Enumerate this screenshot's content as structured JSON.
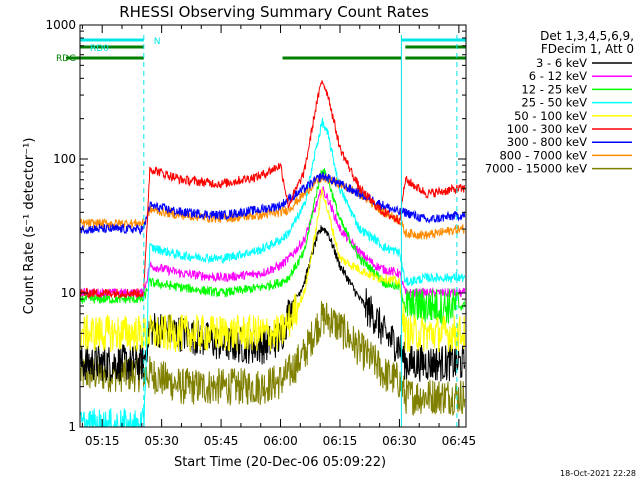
{
  "chart_data": {
    "type": "line",
    "title": "RHESSI Observing Summary Count Rates",
    "xlabel": "Start Time (20-Dec-06 05:09:22)",
    "ylabel": "Count Rate (s⁻¹ detector⁻¹)",
    "y_scale": "log",
    "ylim": [
      1,
      1000
    ],
    "xlim_minutes_since_0500": [
      9.4,
      47.0
    ],
    "x_ticks": [
      {
        "label": "05:15",
        "value": 15
      },
      {
        "label": "05:30",
        "value": 30
      },
      {
        "label": "05:45",
        "value": 45
      },
      {
        "label": "06:00",
        "value": 60
      },
      {
        "label": "06:15",
        "value": 75
      },
      {
        "label": "06:30",
        "value": 90
      },
      {
        "label": "06:45",
        "value": 105
      }
    ],
    "y_ticks": [
      {
        "label": "1",
        "value": 1
      },
      {
        "label": "10",
        "value": 10
      },
      {
        "label": "100",
        "value": 100
      },
      {
        "label": "1000",
        "value": 1000
      }
    ],
    "legend": {
      "placement": "top-right",
      "header": [
        "Det 1,3,4,5,6,9,",
        "FDecim 1, Att 0"
      ]
    },
    "footer_timestamp": "18-Oct-2021 22:28",
    "flags": [
      {
        "label": "N",
        "color": "#00e6e6"
      },
      {
        "label": "RD0",
        "color": "#00e6e6"
      },
      {
        "label": "RDG",
        "color": "#007f00"
      }
    ],
    "series": [
      {
        "name": "3 - 6 keV",
        "color": "#000000",
        "x": [
          9.6,
          14,
          18,
          25.5,
          27,
          35,
          45,
          55,
          60,
          62,
          66,
          69,
          70.5,
          72,
          75,
          80,
          84,
          86,
          90,
          91.5,
          97,
          105
        ],
        "y": [
          3,
          3,
          3,
          3,
          5.5,
          5,
          4.2,
          4,
          4.6,
          7,
          12,
          25,
          31,
          28,
          16,
          9,
          6.5,
          5,
          4,
          3,
          3,
          3
        ]
      },
      {
        "name": "6 - 12 keV",
        "color": "#ff00ff",
        "x": [
          9.6,
          25.5,
          27,
          35,
          45,
          55,
          60,
          62,
          66,
          69,
          70.5,
          72,
          75,
          80,
          84,
          86,
          90,
          91.5,
          105
        ],
        "y": [
          10,
          10,
          16,
          14,
          13,
          14,
          16,
          18,
          25,
          45,
          60,
          50,
          30,
          20,
          16,
          15,
          14,
          10,
          10
        ]
      },
      {
        "name": "12 - 25 keV",
        "color": "#00ff00",
        "x": [
          9.6,
          25.5,
          27,
          35,
          45,
          55,
          60,
          62,
          66,
          69,
          70.5,
          72,
          75,
          80,
          84,
          86,
          90,
          91.5,
          97,
          105
        ],
        "y": [
          9,
          9,
          12,
          11,
          10,
          11,
          12,
          13,
          20,
          55,
          85,
          70,
          35,
          18,
          14,
          12,
          11,
          8,
          8,
          8
        ]
      },
      {
        "name": "25 - 50 keV",
        "color": "#00ffff",
        "x": [
          9.6,
          25.5,
          27,
          35,
          45,
          55,
          60,
          62,
          66,
          69,
          70.5,
          72,
          75,
          80,
          84,
          86,
          90,
          91.5,
          97,
          105
        ],
        "y": [
          1,
          1,
          22,
          19,
          18,
          21,
          25,
          28,
          45,
          120,
          190,
          150,
          60,
          30,
          25,
          22,
          20,
          12,
          13,
          13
        ]
      },
      {
        "name": "50 - 100 keV",
        "color": "#ffff00",
        "x": [
          9.6,
          25.5,
          27,
          35,
          45,
          55,
          60,
          62,
          66,
          69,
          70.5,
          72,
          75,
          80,
          84,
          86,
          90,
          91.5,
          105
        ],
        "y": [
          5,
          5,
          5,
          5,
          5,
          5,
          5,
          6,
          10,
          30,
          60,
          40,
          18,
          15,
          13,
          13,
          12,
          5,
          5
        ]
      },
      {
        "name": "100 - 300 keV",
        "color": "#ff0000",
        "x": [
          9.6,
          25.5,
          27,
          35,
          45,
          55,
          60,
          62,
          66,
          69,
          70.5,
          72,
          75,
          80,
          84,
          86,
          90,
          91.5,
          97,
          105
        ],
        "y": [
          10,
          10,
          85,
          70,
          65,
          75,
          90,
          45,
          80,
          250,
          390,
          300,
          120,
          60,
          45,
          40,
          35,
          70,
          55,
          60
        ]
      },
      {
        "name": "300 - 800 keV",
        "color": "#0000ff",
        "x": [
          9.6,
          25.5,
          27,
          35,
          45,
          55,
          60,
          62,
          66,
          69,
          70.5,
          72,
          75,
          80,
          84,
          86,
          90,
          91.5,
          97,
          105
        ],
        "y": [
          30,
          30,
          45,
          40,
          38,
          42,
          45,
          50,
          60,
          70,
          75,
          72,
          65,
          55,
          48,
          45,
          40,
          40,
          35,
          38
        ]
      },
      {
        "name": "800 - 7000 keV",
        "color": "#ff8c00",
        "x": [
          9.6,
          25.5,
          27,
          35,
          45,
          55,
          60,
          62,
          66,
          69,
          70.5,
          72,
          75,
          80,
          84,
          86,
          90,
          91.5,
          97,
          105
        ],
        "y": [
          33,
          33,
          42,
          38,
          36,
          38,
          40,
          42,
          55,
          68,
          72,
          70,
          65,
          55,
          45,
          40,
          35,
          28,
          27,
          30
        ]
      },
      {
        "name": "7000 - 15000 keV",
        "color": "#808000",
        "x": [
          9.6,
          25.5,
          27,
          35,
          45,
          55,
          60,
          62,
          66,
          69,
          70.5,
          72,
          75,
          80,
          84,
          86,
          90,
          91.5,
          97,
          105
        ],
        "y": [
          2.5,
          2.5,
          2.5,
          2,
          2,
          2,
          2.2,
          2.5,
          3.5,
          5.5,
          6.5,
          6.5,
          5.5,
          3.8,
          3,
          2.5,
          2.2,
          1.7,
          1.7,
          1.7
        ]
      }
    ]
  }
}
